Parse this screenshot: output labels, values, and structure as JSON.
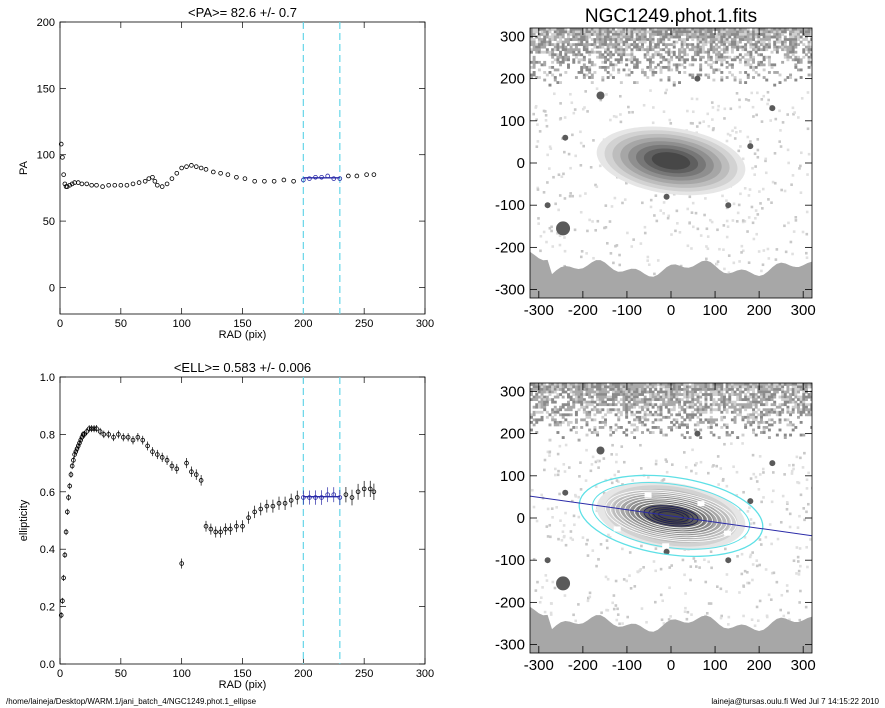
{
  "footer": {
    "path": "/home/laineja/Desktop/WARM.1/jani_batch_4/NGC1249.phot.1_ellipse",
    "user_time": "laineja@tursas.oulu.fi  Wed Jul  7 14:15:22 2010"
  },
  "colors": {
    "fit": "#2a2aa8",
    "marker": "#66d6e8",
    "data": "#000000",
    "ellipse": "#5ee0e6"
  },
  "chart_data": [
    {
      "id": "pa",
      "type": "scatter",
      "title": "<PA>=  82.6 +/-   0.7",
      "xlabel": "RAD (pix)",
      "ylabel": "PA",
      "xlim": [
        0,
        300
      ],
      "ylim": [
        -20,
        200
      ],
      "xticks": [
        0,
        50,
        100,
        150,
        200,
        250,
        300
      ],
      "yticks": [
        0,
        50,
        100,
        150,
        200
      ],
      "vlines": [
        200,
        230
      ],
      "fit_range": [
        200,
        230
      ],
      "fit_value": 82.6,
      "x": [
        1,
        2,
        3,
        4,
        5,
        6,
        8,
        10,
        12,
        15,
        18,
        22,
        26,
        30,
        35,
        40,
        45,
        50,
        55,
        60,
        65,
        70,
        73,
        76,
        78,
        80,
        84,
        88,
        92,
        96,
        100,
        104,
        108,
        112,
        116,
        120,
        126,
        132,
        138,
        145,
        152,
        160,
        168,
        176,
        184,
        192,
        200,
        205,
        210,
        215,
        220,
        225,
        230,
        237,
        244,
        252,
        258
      ],
      "y": [
        108,
        98,
        85,
        78,
        76,
        76,
        77,
        78,
        79,
        79,
        78,
        78,
        77,
        77,
        76,
        77,
        77,
        77,
        77,
        78,
        79,
        80,
        82,
        83,
        80,
        77,
        76,
        78,
        82,
        86,
        90,
        91,
        92,
        91,
        90,
        89,
        87,
        86,
        85,
        83,
        82,
        80,
        80,
        80,
        81,
        80,
        81,
        82,
        83,
        83,
        84,
        82,
        82,
        84,
        84,
        85,
        85
      ]
    },
    {
      "id": "ell",
      "type": "scatter",
      "title": "<ELL>= 0.583 +/-  0.006",
      "xlabel": "RAD (pix)",
      "ylabel": "ellipticity",
      "xlim": [
        0,
        300
      ],
      "ylim": [
        0.0,
        1.0
      ],
      "xticks": [
        0,
        50,
        100,
        150,
        200,
        250,
        300
      ],
      "yticks": [
        0.0,
        0.2,
        0.4,
        0.6,
        0.8,
        1.0
      ],
      "vlines": [
        200,
        230
      ],
      "fit_range": [
        200,
        230
      ],
      "fit_value": 0.583,
      "x": [
        1,
        2,
        3,
        4,
        5,
        6,
        7,
        8,
        9,
        10,
        11,
        12,
        13,
        14,
        15,
        16,
        17,
        18,
        19,
        20,
        22,
        24,
        26,
        28,
        30,
        33,
        36,
        40,
        44,
        48,
        52,
        56,
        60,
        64,
        68,
        72,
        76,
        80,
        84,
        88,
        92,
        96,
        100,
        104,
        108,
        112,
        116,
        120,
        124,
        128,
        132,
        136,
        140,
        145,
        150,
        155,
        160,
        165,
        170,
        175,
        180,
        185,
        190,
        195,
        200,
        205,
        210,
        215,
        220,
        225,
        230,
        235,
        240,
        245,
        250,
        255,
        258
      ],
      "y": [
        0.17,
        0.22,
        0.3,
        0.38,
        0.46,
        0.53,
        0.58,
        0.62,
        0.66,
        0.69,
        0.71,
        0.73,
        0.74,
        0.75,
        0.76,
        0.77,
        0.78,
        0.79,
        0.8,
        0.8,
        0.81,
        0.82,
        0.82,
        0.82,
        0.82,
        0.81,
        0.8,
        0.8,
        0.79,
        0.8,
        0.79,
        0.79,
        0.78,
        0.79,
        0.78,
        0.76,
        0.74,
        0.73,
        0.72,
        0.71,
        0.69,
        0.68,
        0.35,
        0.7,
        0.67,
        0.66,
        0.64,
        0.48,
        0.47,
        0.46,
        0.46,
        0.47,
        0.47,
        0.48,
        0.48,
        0.51,
        0.53,
        0.54,
        0.55,
        0.55,
        0.56,
        0.56,
        0.57,
        0.58,
        0.58,
        0.58,
        0.58,
        0.58,
        0.59,
        0.59,
        0.58,
        0.59,
        0.58,
        0.6,
        0.61,
        0.61,
        0.6
      ]
    },
    {
      "id": "img1",
      "type": "heatmap",
      "title": "NGC1249.phot.1.fits",
      "xlim": [
        -320,
        320
      ],
      "ylim": [
        -320,
        320
      ],
      "xticks": [
        -300,
        -200,
        -100,
        0,
        100,
        200,
        300
      ],
      "yticks": [
        -300,
        -200,
        -100,
        0,
        100,
        200,
        300
      ]
    },
    {
      "id": "img2",
      "type": "heatmap",
      "title": "",
      "xlim": [
        -320,
        320
      ],
      "ylim": [
        -320,
        320
      ],
      "xticks": [
        -300,
        -200,
        -100,
        0,
        100,
        200,
        300
      ],
      "yticks": [
        -300,
        -200,
        -100,
        0,
        100,
        200,
        300
      ]
    }
  ]
}
